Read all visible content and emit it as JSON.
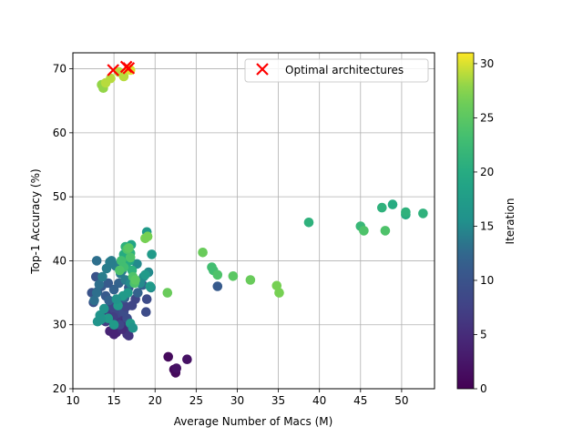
{
  "chart_data": {
    "type": "scatter",
    "title": "",
    "xlabel": "Average Number of Macs (M)",
    "ylabel": "Top-1 Accuracy (%)",
    "xlim": [
      10,
      54
    ],
    "ylim": [
      20,
      72.5
    ],
    "xticks": [
      10,
      15,
      20,
      25,
      30,
      35,
      40,
      45,
      50
    ],
    "yticks": [
      20,
      30,
      40,
      50,
      60,
      70
    ],
    "grid": true,
    "legend": {
      "placement": "top-right",
      "entries": [
        "Optimal architectures"
      ]
    },
    "colorbar": {
      "label": "Iteration",
      "range": [
        0,
        31
      ],
      "ticks": [
        0,
        5,
        10,
        15,
        20,
        25,
        30
      ]
    },
    "colormap": "viridis",
    "marker_color_optimal": "#ff0000",
    "series": [
      {
        "name": "",
        "x": [
          21.6,
          22.3,
          22.5,
          22.6,
          23.9,
          14.5,
          15.0,
          15.2,
          15.5,
          15.8,
          16.1,
          16.3,
          16.6,
          16.8,
          17.0,
          14.8,
          15.6,
          16.4,
          15.3,
          16.0,
          13.8,
          14.2,
          14.6,
          15.0,
          15.4,
          15.9,
          16.2,
          16.6,
          17.2,
          17.6,
          14.0,
          14.9,
          15.7,
          16.5,
          18.9,
          19.0,
          12.3,
          12.5,
          13.0,
          13.5,
          14.0,
          14.4,
          15.0,
          15.6,
          16.3,
          17.5,
          18.5,
          27.6,
          12.8,
          14.3,
          16.8,
          17.9,
          12.6,
          12.9,
          13.2,
          13.6,
          14.1,
          14.7,
          15.2,
          15.8,
          16.4,
          17.0,
          17.8,
          18.6,
          19.2,
          19.5,
          12.9,
          14.5,
          16.0,
          18.2,
          13.0,
          13.3,
          13.8,
          14.3,
          15.0,
          15.5,
          16.1,
          16.7,
          17.0,
          19.0,
          19.4,
          19.6,
          13.4,
          15.3,
          17.3,
          18.8,
          16.6,
          16.9,
          17.1,
          16.2,
          16.5,
          16.8,
          17.0,
          16.4,
          17.2,
          38.7,
          45.0,
          47.6,
          48.9,
          50.5,
          50.5,
          52.6,
          15.9,
          16.2,
          16.6,
          17.0,
          17.3,
          17.5,
          15.7,
          16.8,
          17.6,
          45.4,
          48.0,
          26.9,
          27.1,
          27.6,
          29.5,
          18.8,
          19.1,
          21.5,
          25.8,
          31.6,
          34.8,
          35.1,
          13.5,
          13.7,
          14.0,
          14.6,
          15.6,
          16.2,
          16.8,
          17.0
        ],
        "y": [
          25.0,
          23.0,
          22.5,
          23.2,
          24.6,
          29.0,
          28.5,
          29.5,
          30.0,
          30.5,
          31.0,
          29.5,
          28.5,
          28.3,
          29.8,
          30.8,
          31.5,
          30.2,
          28.8,
          29.3,
          31.5,
          32.0,
          33.0,
          32.5,
          31.8,
          33.5,
          32.0,
          31.0,
          33.0,
          34.0,
          30.5,
          31.2,
          30.0,
          32.8,
          32.0,
          34.0,
          35.0,
          33.5,
          35.2,
          36.0,
          34.5,
          33.8,
          35.5,
          36.5,
          34.2,
          37.0,
          36.2,
          36.0,
          37.5,
          36.5,
          35.8,
          35.0,
          33.8,
          35.0,
          36.3,
          37.5,
          38.8,
          40.0,
          39.2,
          38.0,
          37.0,
          36.5,
          39.5,
          37.5,
          38.2,
          35.8,
          40.0,
          39.8,
          38.5,
          36.5,
          30.5,
          31.5,
          32.5,
          31.0,
          30.0,
          33.0,
          34.5,
          35.0,
          30.2,
          44.5,
          36.0,
          41.0,
          30.8,
          34.0,
          29.5,
          37.8,
          41.5,
          40.0,
          42.5,
          41.0,
          39.5,
          40.5,
          41.2,
          42.2,
          38.5,
          46.0,
          45.4,
          48.3,
          48.8,
          47.2,
          47.6,
          47.4,
          40.0,
          39.0,
          41.8,
          40.5,
          37.5,
          36.5,
          38.5,
          42.0,
          37.0,
          44.7,
          44.7,
          39.0,
          38.5,
          37.8,
          37.6,
          43.5,
          43.8,
          35.0,
          41.3,
          37.0,
          36.1,
          35.0,
          67.5,
          67.0,
          67.8,
          68.5,
          69.5,
          68.8,
          70.0,
          69.8
        ],
        "iteration": [
          1,
          1,
          1,
          2,
          2,
          4,
          4,
          4,
          5,
          5,
          5,
          6,
          6,
          6,
          6,
          5,
          6,
          6,
          4,
          5,
          7,
          7,
          8,
          8,
          8,
          9,
          9,
          9,
          8,
          8,
          7,
          7,
          8,
          8,
          9,
          9,
          10,
          10,
          11,
          11,
          11,
          12,
          12,
          12,
          12,
          12,
          12,
          11,
          10,
          11,
          11,
          12,
          13,
          13,
          13,
          14,
          14,
          14,
          14,
          14,
          14,
          15,
          15,
          15,
          15,
          15,
          13,
          14,
          14,
          15,
          16,
          16,
          16,
          17,
          17,
          17,
          17,
          17,
          17,
          17,
          17,
          17,
          16,
          16,
          16,
          17,
          19,
          19,
          19,
          20,
          20,
          20,
          21,
          21,
          21,
          21,
          22,
          21,
          20,
          20,
          21,
          21,
          23,
          23,
          24,
          24,
          24,
          24,
          24,
          25,
          25,
          24,
          24,
          23,
          23,
          24,
          25,
          27,
          27,
          26,
          26,
          26,
          27,
          27,
          28,
          28,
          29,
          29,
          29,
          29,
          30,
          30
        ]
      },
      {
        "name": "Optimal architectures",
        "x": [
          14.9,
          16.5,
          16.8
        ],
        "y": [
          69.8,
          70.3,
          70.1
        ]
      }
    ]
  }
}
